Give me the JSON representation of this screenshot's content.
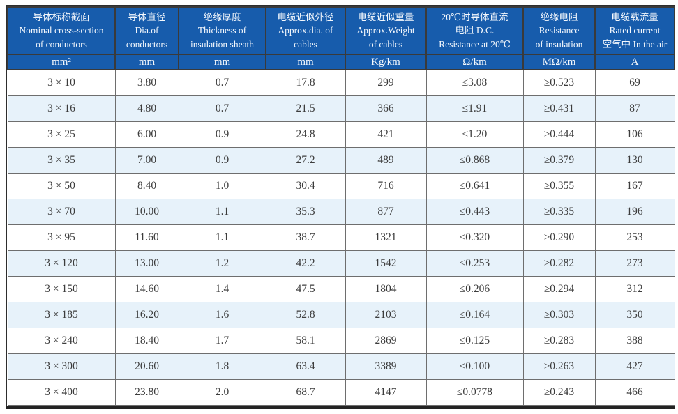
{
  "colors": {
    "header_bg": "#175cac",
    "header_text": "#f4f8fd",
    "row_alt_bg": "#e7f2fa",
    "row_bg": "#ffffff",
    "body_text": "#3c3c3c",
    "outer_border": "#2d2d2d",
    "grid_line": "#6e6e6e"
  },
  "table": {
    "columns": [
      {
        "key": "nominal-cross-section",
        "lines": [
          "导体标称截面",
          "Nominal cross-section",
          "of conductors"
        ],
        "unit": "mm²"
      },
      {
        "key": "conductor-diameter",
        "lines": [
          "导体直径",
          "Dia.of",
          "conductors"
        ],
        "unit": "mm"
      },
      {
        "key": "insulation-thickness",
        "lines": [
          "绝缘厚度",
          "Thickness of",
          "insulation sheath"
        ],
        "unit": "mm"
      },
      {
        "key": "approx-diameter",
        "lines": [
          "电缆近似外径",
          "Approx.dia. of",
          "cables"
        ],
        "unit": "mm"
      },
      {
        "key": "approx-weight",
        "lines": [
          "电缆近似重量",
          "Approx.Weight",
          "of cables"
        ],
        "unit": "Kg/km"
      },
      {
        "key": "dc-resistance",
        "lines": [
          "20℃时导体直流",
          "电阻 D.C.",
          "Resistance at 20℃"
        ],
        "unit": "Ω/km"
      },
      {
        "key": "insulation-resistance",
        "lines": [
          "绝缘电阻",
          "Resistance",
          "of insulation"
        ],
        "unit": "MΩ/km"
      },
      {
        "key": "rated-current",
        "lines": [
          "电缆载流量",
          "Rated current",
          "空气中 In the air"
        ],
        "unit": "A"
      }
    ],
    "rows": [
      [
        "3 × 10",
        "3.80",
        "0.7",
        "17.8",
        "299",
        "≤3.08",
        "≥0.523",
        "69"
      ],
      [
        "3 × 16",
        "4.80",
        "0.7",
        "21.5",
        "366",
        "≤1.91",
        "≥0.431",
        "87"
      ],
      [
        "3 × 25",
        "6.00",
        "0.9",
        "24.8",
        "421",
        "≤1.20",
        "≥0.444",
        "106"
      ],
      [
        "3 × 35",
        "7.00",
        "0.9",
        "27.2",
        "489",
        "≤0.868",
        "≥0.379",
        "130"
      ],
      [
        "3 × 50",
        "8.40",
        "1.0",
        "30.4",
        "716",
        "≤0.641",
        "≥0.355",
        "167"
      ],
      [
        "3 × 70",
        "10.00",
        "1.1",
        "35.3",
        "877",
        "≤0.443",
        "≥0.335",
        "196"
      ],
      [
        "3 × 95",
        "11.60",
        "1.1",
        "38.7",
        "1321",
        "≤0.320",
        "≥0.290",
        "253"
      ],
      [
        "3 × 120",
        "13.00",
        "1.2",
        "42.2",
        "1542",
        "≤0.253",
        "≥0.282",
        "273"
      ],
      [
        "3 × 150",
        "14.60",
        "1.4",
        "47.5",
        "1804",
        "≤0.206",
        "≥0.294",
        "312"
      ],
      [
        "3 × 185",
        "16.20",
        "1.6",
        "52.8",
        "2103",
        "≤0.164",
        "≥0.303",
        "350"
      ],
      [
        "3 × 240",
        "18.40",
        "1.7",
        "58.1",
        "2869",
        "≤0.125",
        "≥0.283",
        "388"
      ],
      [
        "3 × 300",
        "20.60",
        "1.8",
        "63.4",
        "3389",
        "≤0.100",
        "≥0.263",
        "427"
      ],
      [
        "3 × 400",
        "23.80",
        "2.0",
        "68.7",
        "4147",
        "≤0.0778",
        "≥0.243",
        "466"
      ]
    ]
  }
}
